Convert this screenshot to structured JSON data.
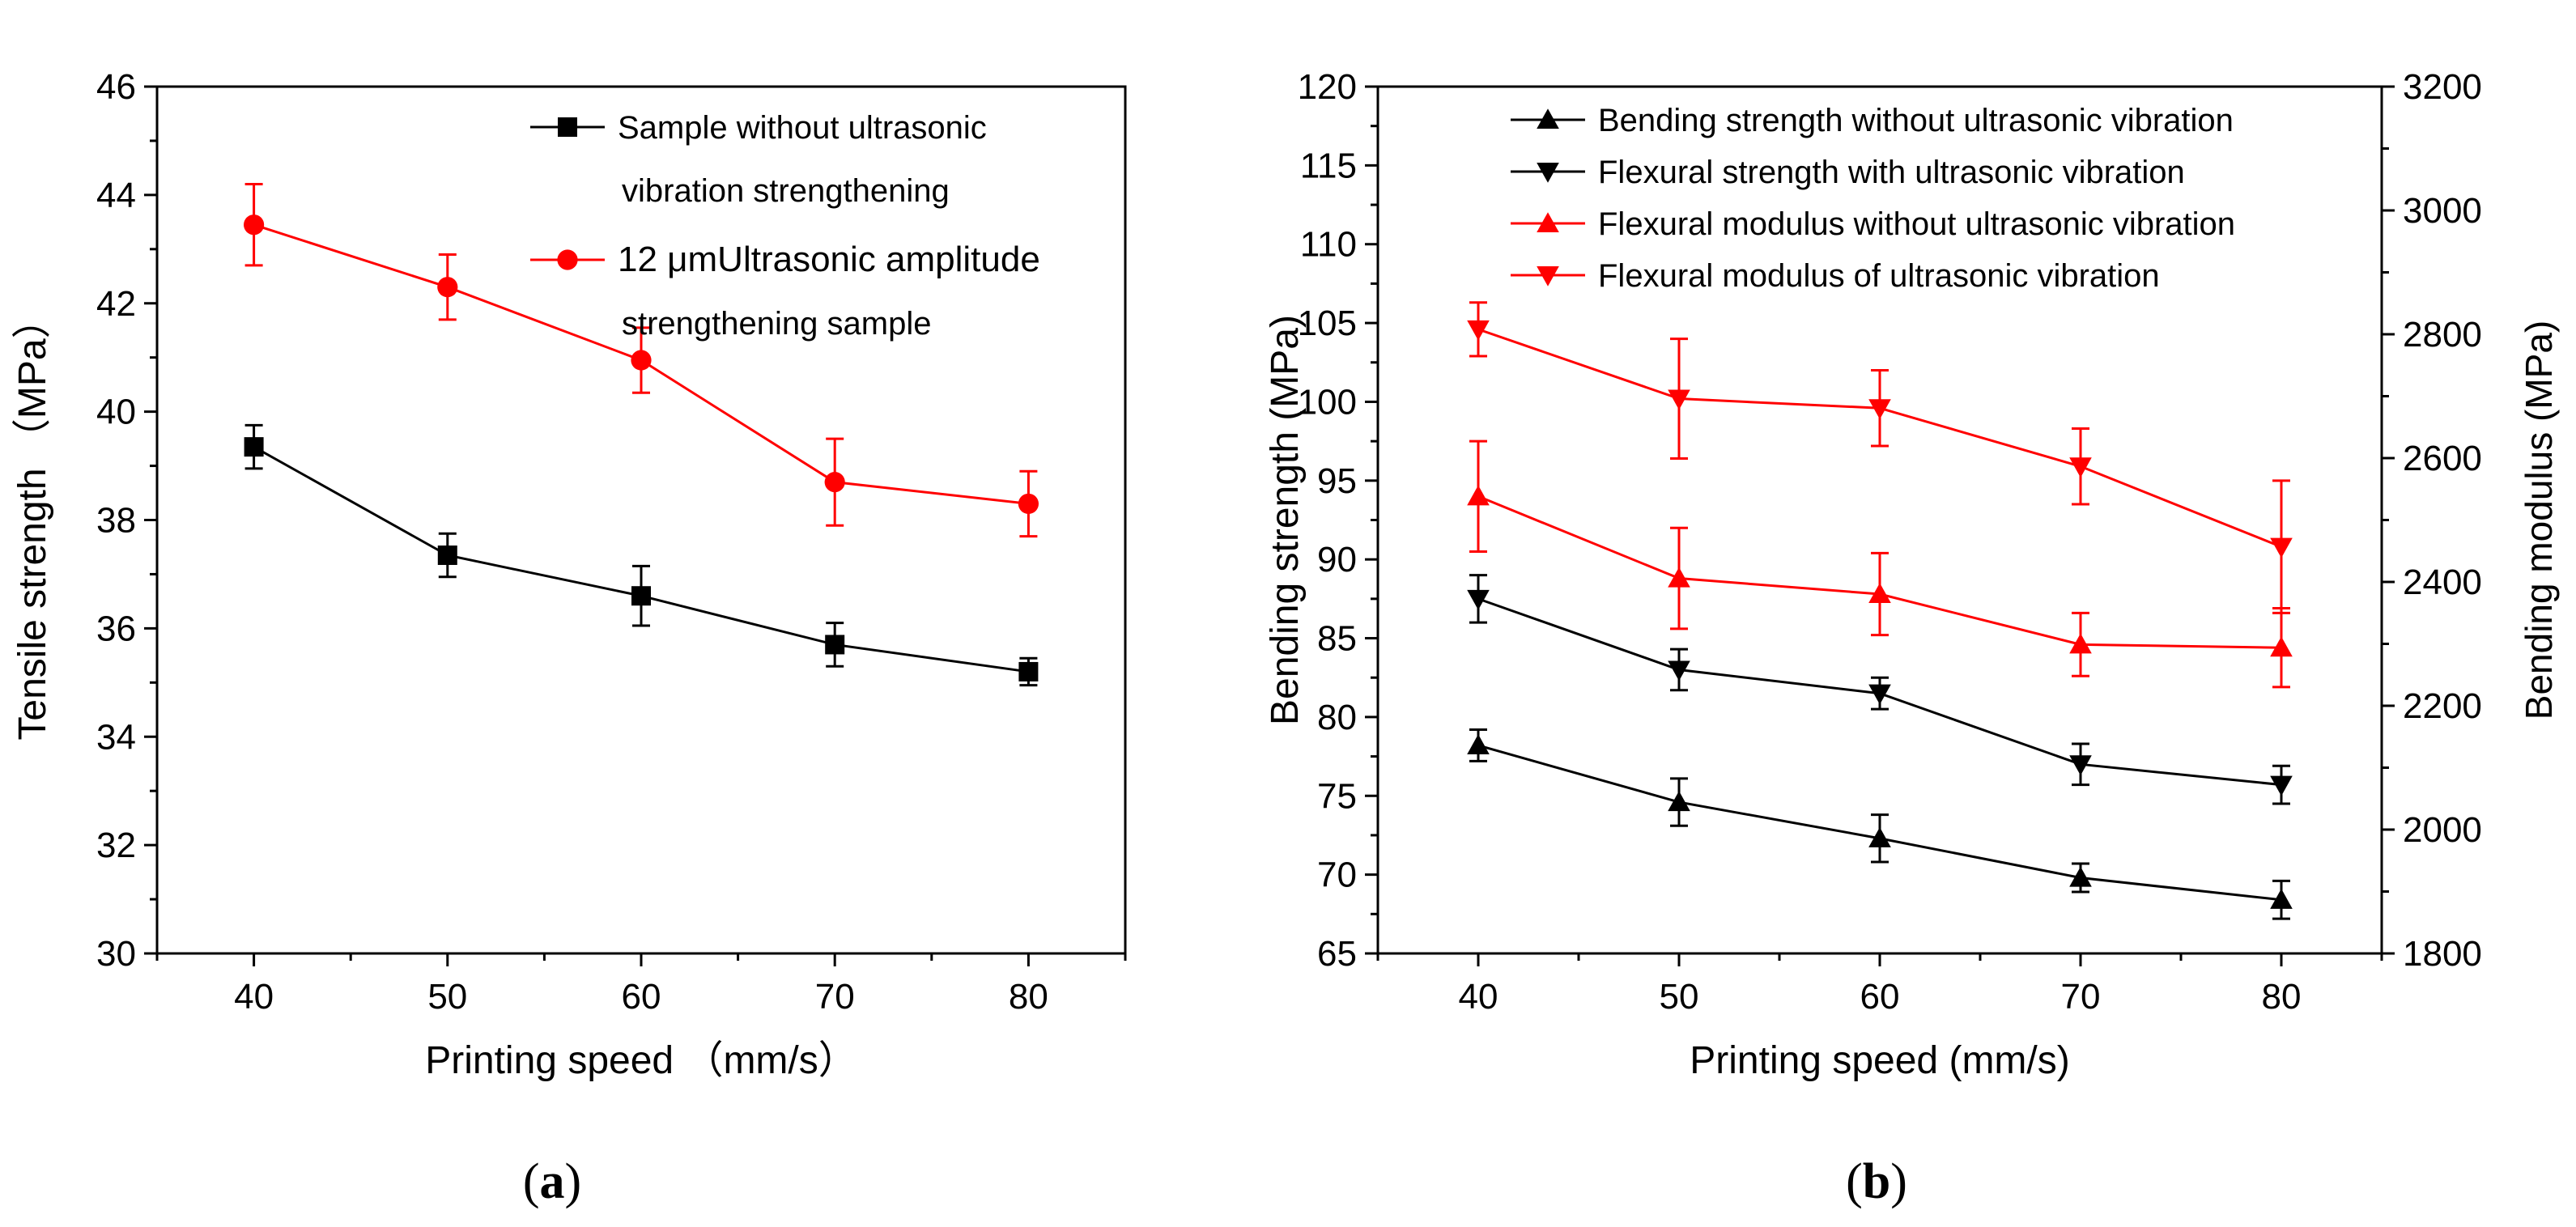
{
  "figure": {
    "panel_a_label": "a",
    "panel_b_label": "b"
  },
  "chart_data": [
    {
      "type": "line",
      "panel": "a",
      "xlabel": "Printing speed （mm/s）",
      "ylabel": "Tensile strength （MPa）",
      "xlim": [
        35,
        85
      ],
      "ylim": [
        30,
        46
      ],
      "x_ticks": [
        40,
        50,
        60,
        70,
        80
      ],
      "y_ticks": [
        30,
        32,
        34,
        36,
        38,
        40,
        42,
        44,
        46
      ],
      "x": [
        40,
        50,
        60,
        70,
        80
      ],
      "legend_position": "top-right",
      "series": [
        {
          "name": "Sample without ultrasonic vibration strengthening",
          "legend_lines": [
            "Sample without ultrasonic",
            "vibration strengthening"
          ],
          "color": "#000000",
          "marker": "square",
          "values": [
            39.35,
            37.35,
            36.6,
            35.7,
            35.2
          ],
          "errors": [
            0.4,
            0.4,
            0.55,
            0.4,
            0.25
          ]
        },
        {
          "name": "12 μmUltrasonic amplitude strengthening sample",
          "legend_lines": [
            "12 μmUltrasonic amplitude",
            "strengthening sample"
          ],
          "color": "#ff0000",
          "marker": "circle",
          "values": [
            43.45,
            42.3,
            40.95,
            38.7,
            38.3
          ],
          "errors": [
            0.75,
            0.6,
            0.6,
            0.8,
            0.6
          ]
        }
      ]
    },
    {
      "type": "line",
      "panel": "b",
      "xlabel": "Printing speed (mm/s)",
      "ylabel": "Bending strength (MPa)",
      "y2label": "Bending modulus (MPa)",
      "xlim": [
        35,
        85
      ],
      "ylim": [
        65,
        120
      ],
      "y2lim": [
        1800,
        3200
      ],
      "x_ticks": [
        40,
        50,
        60,
        70,
        80
      ],
      "y_ticks": [
        65,
        70,
        75,
        80,
        85,
        90,
        95,
        100,
        105,
        110,
        115,
        120
      ],
      "y2_ticks": [
        1800,
        2000,
        2200,
        2400,
        2600,
        2800,
        3000,
        3200
      ],
      "x": [
        40,
        50,
        60,
        70,
        80
      ],
      "legend_position": "top-right",
      "series": [
        {
          "name": "Bending strength without ultrasonic vibration",
          "color": "#000000",
          "marker": "triangle-up",
          "axis": "left",
          "values": [
            78.2,
            74.6,
            72.3,
            69.8,
            68.4
          ],
          "errors": [
            1.0,
            1.5,
            1.5,
            0.9,
            1.2
          ]
        },
        {
          "name": "Flexural strength with ultrasonic vibration",
          "color": "#000000",
          "marker": "triangle-down",
          "axis": "left",
          "values": [
            87.5,
            83.0,
            81.5,
            77.0,
            75.7
          ],
          "errors": [
            1.5,
            1.3,
            1.0,
            1.3,
            1.2
          ]
        },
        {
          "name": "Flexural modulus without ultrasonic vibration",
          "color": "#ff0000",
          "marker": "triangle-up",
          "axis": "left",
          "values": [
            94.0,
            88.8,
            87.8,
            84.6,
            84.4
          ],
          "errors": [
            3.5,
            3.2,
            2.6,
            2.0,
            2.5
          ]
        },
        {
          "name": "Flexural modulus of ultrasonic vibration",
          "color": "#ff0000",
          "marker": "triangle-down",
          "axis": "left",
          "values": [
            104.6,
            100.2,
            99.6,
            95.9,
            90.8
          ],
          "errors": [
            1.7,
            3.8,
            2.4,
            2.4,
            4.2
          ]
        }
      ]
    }
  ]
}
